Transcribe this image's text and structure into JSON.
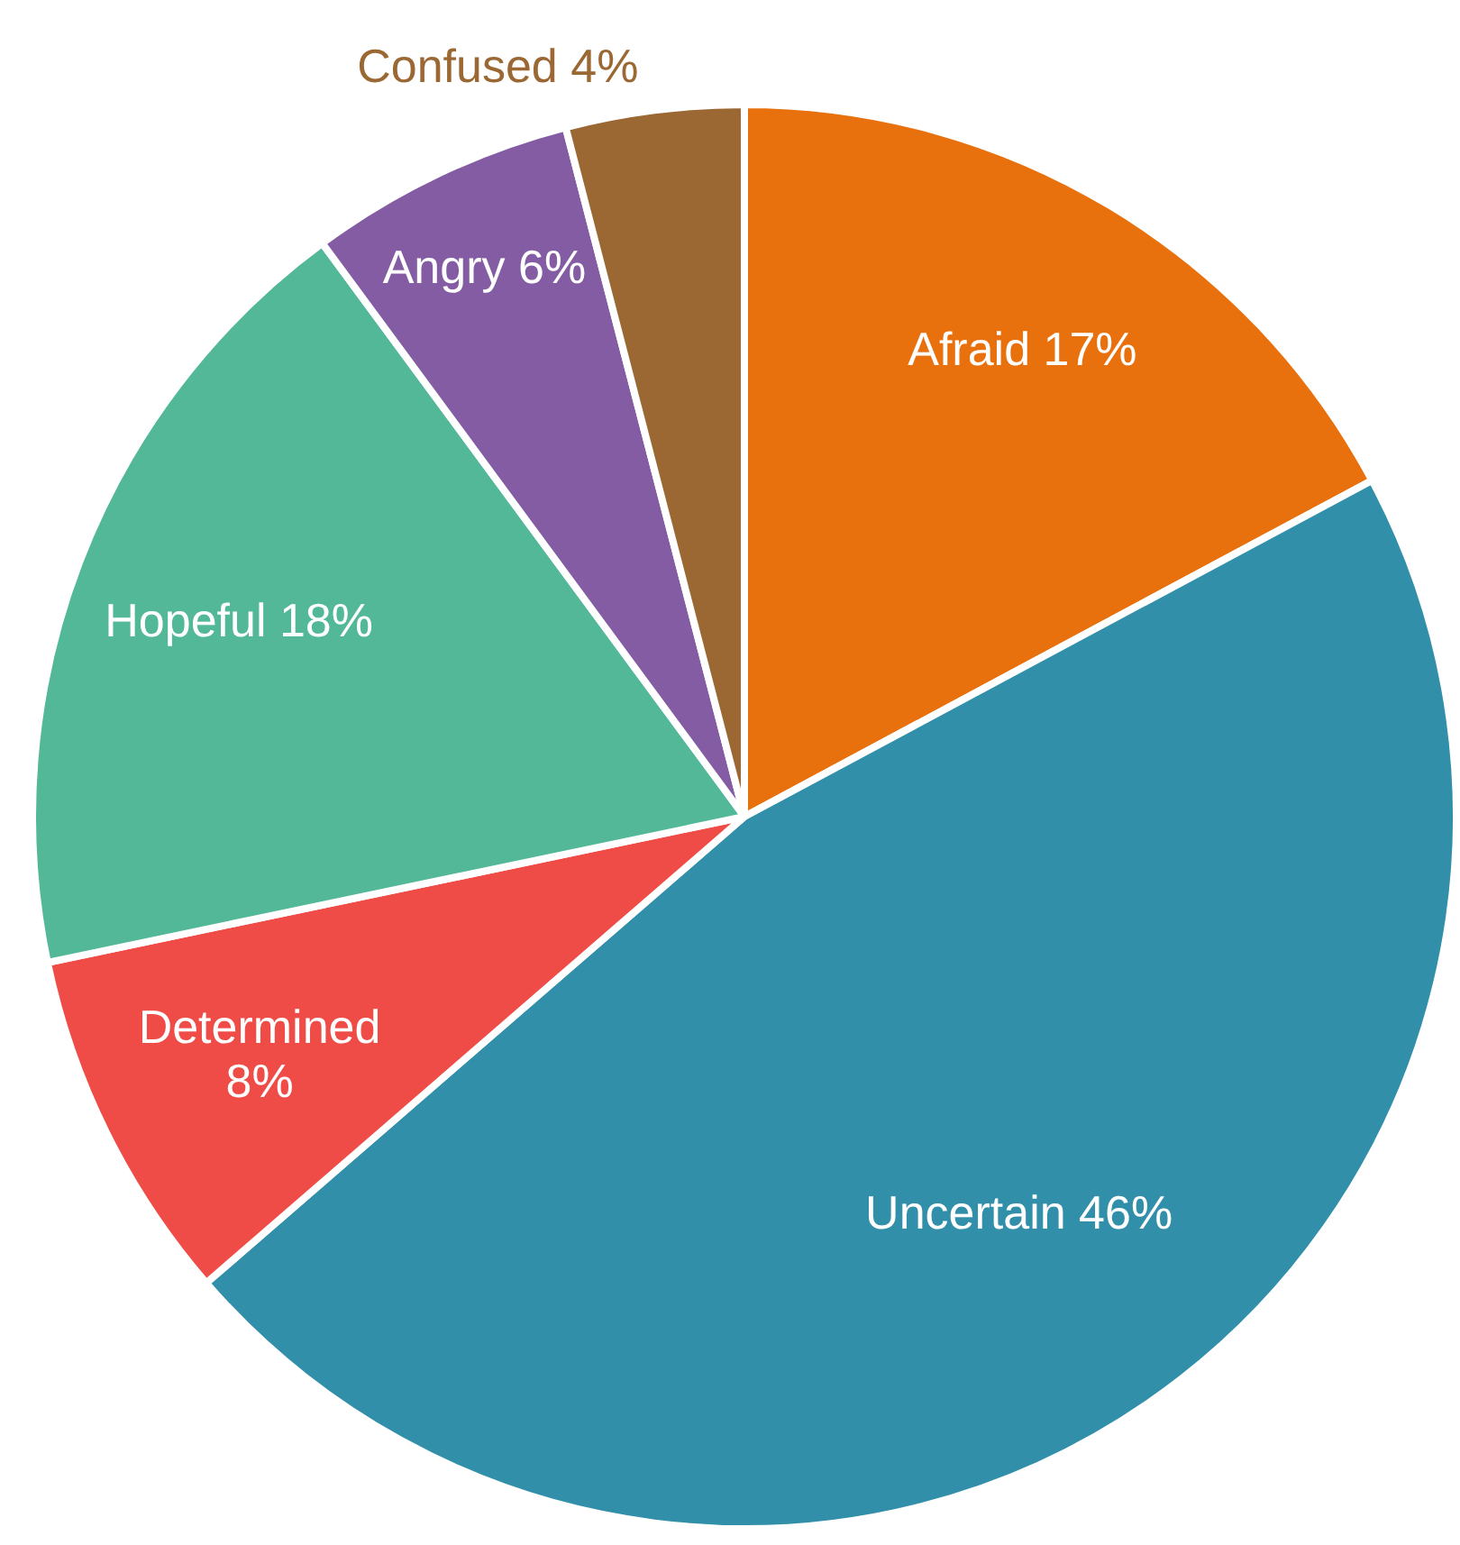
{
  "chart_data": {
    "type": "pie",
    "categories": [
      "Afraid",
      "Uncertain",
      "Determined",
      "Hopeful",
      "Angry",
      "Confused"
    ],
    "values": [
      17,
      46,
      8,
      18,
      6,
      4
    ],
    "colors": [
      "#e8710e",
      "#318faa",
      "#ef4c47",
      "#52b898",
      "#845ca3",
      "#9b6834"
    ],
    "value_labels": [
      "17%",
      "46%",
      "8%",
      "18%",
      "6%",
      "4%"
    ],
    "legend": false
  }
}
